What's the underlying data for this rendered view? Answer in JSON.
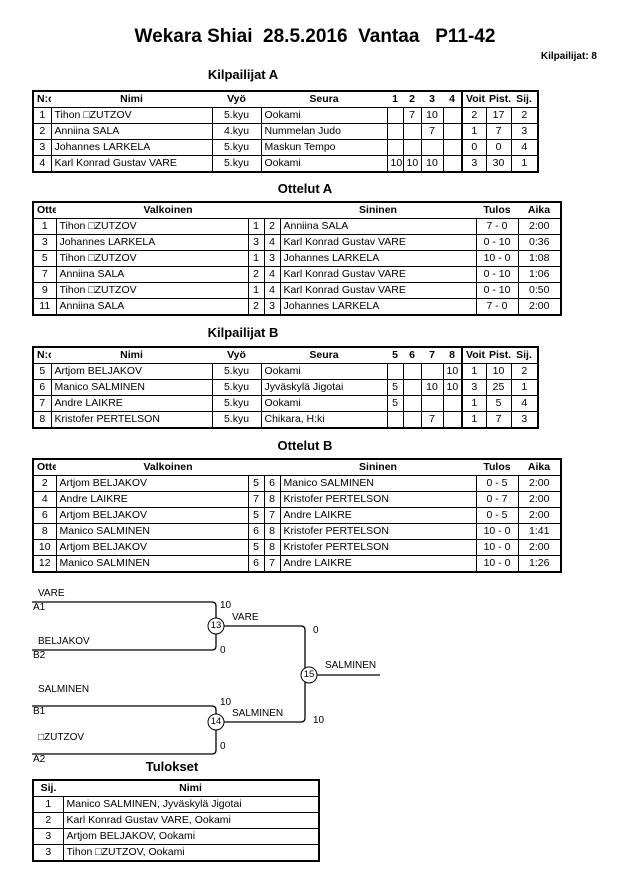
{
  "title": "Wekara Shiai  28.5.2016  Vantaa   P11-42",
  "competitor_count": "Kilpailijat: 8",
  "pool_a": {
    "title": "Kilpailijat A",
    "headers": [
      "N:o",
      "Nimi",
      "Vyö",
      "Seura",
      "1",
      "2",
      "3",
      "4",
      "Voit.",
      "Pist.",
      "Sij."
    ],
    "rows": [
      [
        "1",
        "Tihon □ZUTZOV",
        "5.kyu",
        "Ookami",
        "",
        "7",
        "10",
        "",
        "2",
        "17",
        "2"
      ],
      [
        "2",
        "Anniina SALA",
        "4.kyu",
        "Nummelan Judo",
        "",
        "",
        "7",
        "",
        "1",
        "7",
        "3"
      ],
      [
        "3",
        "Johannes LARKELA",
        "5.kyu",
        "Maskun Tempo",
        "",
        "",
        "",
        "",
        "0",
        "0",
        "4"
      ],
      [
        "4",
        "Karl Konrad Gustav VARE",
        "5.kyu",
        "Ookami",
        "10",
        "10",
        "10",
        "",
        "3",
        "30",
        "1"
      ]
    ]
  },
  "matches_a": {
    "title": "Ottelut A",
    "headers": [
      "Ottelu",
      "Valkoinen",
      "",
      "",
      "Sininen",
      "Tulos",
      "Aika"
    ],
    "rows": [
      [
        "1",
        "Tihon □ZUTZOV",
        "1",
        "2",
        "Anniina SALA",
        "7 - 0",
        "2:00"
      ],
      [
        "3",
        "Johannes LARKELA",
        "3",
        "4",
        "Karl Konrad Gustav VARE",
        "0 - 10",
        "0:36"
      ],
      [
        "5",
        "Tihon □ZUTZOV",
        "1",
        "3",
        "Johannes LARKELA",
        "10 - 0",
        "1:08"
      ],
      [
        "7",
        "Anniina SALA",
        "2",
        "4",
        "Karl Konrad Gustav VARE",
        "0 - 10",
        "1:06"
      ],
      [
        "9",
        "Tihon □ZUTZOV",
        "1",
        "4",
        "Karl Konrad Gustav VARE",
        "0 - 10",
        "0:50"
      ],
      [
        "11",
        "Anniina SALA",
        "2",
        "3",
        "Johannes LARKELA",
        "7 - 0",
        "2:00"
      ]
    ]
  },
  "pool_b": {
    "title": "Kilpailijat B",
    "headers": [
      "N:o",
      "Nimi",
      "Vyö",
      "Seura",
      "5",
      "6",
      "7",
      "8",
      "Voit.",
      "Pist.",
      "Sij."
    ],
    "rows": [
      [
        "5",
        "Artjom BELJAKOV",
        "5.kyu",
        "Ookami",
        "",
        "",
        "",
        "10",
        "1",
        "10",
        "2"
      ],
      [
        "6",
        "Manico SALMINEN",
        "5.kyu",
        "Jyväskylä Jigotai",
        "5",
        "",
        "10",
        "10",
        "3",
        "25",
        "1"
      ],
      [
        "7",
        "Andre LAIKRE",
        "5.kyu",
        "Ookami",
        "5",
        "",
        "",
        "",
        "1",
        "5",
        "4"
      ],
      [
        "8",
        "Kristofer PERTELSON",
        "5.kyu",
        "Chikara, H:ki",
        "",
        "",
        "7",
        "",
        "1",
        "7",
        "3"
      ]
    ]
  },
  "matches_b": {
    "title": "Ottelut B",
    "headers": [
      "Ottelu",
      "Valkoinen",
      "",
      "",
      "Sininen",
      "Tulos",
      "Aika"
    ],
    "rows": [
      [
        "2",
        "Artjom BELJAKOV",
        "5",
        "6",
        "Manico SALMINEN",
        "0 - 5",
        "2:00"
      ],
      [
        "4",
        "Andre LAIKRE",
        "7",
        "8",
        "Kristofer PERTELSON",
        "0 - 7",
        "2:00"
      ],
      [
        "6",
        "Artjom BELJAKOV",
        "5",
        "7",
        "Andre LAIKRE",
        "0 - 5",
        "2:00"
      ],
      [
        "8",
        "Manico SALMINEN",
        "6",
        "8",
        "Kristofer PERTELSON",
        "10 - 0",
        "1:41"
      ],
      [
        "10",
        "Artjom BELJAKOV",
        "5",
        "8",
        "Kristofer PERTELSON",
        "10 - 0",
        "2:00"
      ],
      [
        "12",
        "Manico SALMINEN",
        "6",
        "7",
        "Andre LAIKRE",
        "10 - 0",
        "1:26"
      ]
    ]
  },
  "bracket": {
    "sf1": {
      "top_name": "VARE",
      "top_seed": "A1",
      "top_score": "10",
      "bottom_name": "BELJAKOV",
      "bottom_seed": "B2",
      "bottom_score": "0",
      "match": "13",
      "winner": "VARE"
    },
    "sf2": {
      "top_name": "SALMINEN",
      "top_seed": "B1",
      "top_score": "10",
      "bottom_name": "□ZUTZOV",
      "bottom_seed": "A2",
      "bottom_score": "0",
      "match": "14",
      "winner": "SALMINEN"
    },
    "final": {
      "match": "15",
      "top_score": "0",
      "bottom_score": "10",
      "winner": "SALMINEN"
    }
  },
  "results": {
    "title": "Tulokset",
    "headers": [
      "Sij.",
      "Nimi"
    ],
    "rows": [
      [
        "1",
        "Manico SALMINEN, Jyväskylä Jigotai"
      ],
      [
        "2",
        "Karl Konrad Gustav VARE, Ookami"
      ],
      [
        "3",
        "Artjom BELJAKOV, Ookami"
      ],
      [
        "3",
        "Tihon □ZUTZOV, Ookami"
      ]
    ]
  }
}
